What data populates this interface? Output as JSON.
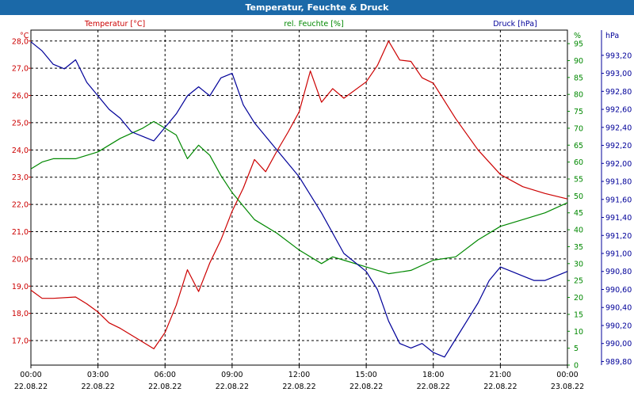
{
  "window": {
    "title": "Temperatur, Feuchte & Druck"
  },
  "chart_data": {
    "type": "line",
    "title": "Temperatur, Feuchte & Druck",
    "colors": {
      "temperature": "#cc0000",
      "humidity": "#008800",
      "pressure": "#000099",
      "grid": "#000000"
    },
    "grid": true,
    "x": {
      "start": "22.08.22 00:00",
      "end": "23.08.22 00:00",
      "ticks": [
        {
          "time": "00:00",
          "date": "22.08.22"
        },
        {
          "time": "03:00",
          "date": "22.08.22"
        },
        {
          "time": "06:00",
          "date": "22.08.22"
        },
        {
          "time": "09:00",
          "date": "22.08.22"
        },
        {
          "time": "12:00",
          "date": "22.08.22"
        },
        {
          "time": "15:00",
          "date": "22.08.22"
        },
        {
          "time": "18:00",
          "date": "22.08.22"
        },
        {
          "time": "21:00",
          "date": "22.08.22"
        },
        {
          "time": "00:00",
          "date": "23.08.22"
        }
      ]
    },
    "axes": {
      "temperature": {
        "label": "Temperatur [°C]",
        "unit": "°C",
        "range": [
          16.1,
          28.4
        ],
        "ticks": [
          "17,0",
          "18,0",
          "19,0",
          "20,0",
          "21,0",
          "22,0",
          "23,0",
          "24,0",
          "25,0",
          "26,0",
          "27,0",
          "28,0"
        ]
      },
      "humidity": {
        "label": "rel. Feuchte [%]",
        "unit": "%",
        "range": [
          0,
          99
        ],
        "ticks": [
          "0",
          "5",
          "10",
          "15",
          "20",
          "25",
          "30",
          "35",
          "40",
          "45",
          "50",
          "55",
          "60",
          "65",
          "70",
          "75",
          "80",
          "85",
          "90",
          "95"
        ]
      },
      "pressure": {
        "label": "Druck [hPa]",
        "unit": "hPa",
        "range": [
          989.76,
          993.48
        ],
        "ticks": [
          "989,80",
          "990,00",
          "990,20",
          "990,40",
          "990,60",
          "990,80",
          "991,00",
          "991,20",
          "991,40",
          "991,60",
          "991,80",
          "992,00",
          "992,20",
          "992,40",
          "992,60",
          "992,80",
          "993,00",
          "993,20"
        ]
      }
    },
    "series": [
      {
        "name": "Temperatur [°C]",
        "key": "temperature",
        "x": [
          0,
          0.5,
          1,
          2,
          2.5,
          3,
          3.5,
          4,
          5,
          5.5,
          6,
          6.5,
          7,
          7.5,
          8,
          8.5,
          9,
          9.5,
          10,
          10.5,
          11,
          11.5,
          12,
          12.5,
          13,
          13.5,
          14,
          15,
          15.5,
          16,
          16.5,
          17,
          17.5,
          18,
          19,
          20,
          21,
          22,
          23,
          24
        ],
        "values": [
          18.85,
          18.55,
          18.55,
          18.6,
          18.35,
          18.05,
          17.65,
          17.45,
          16.95,
          16.7,
          17.3,
          18.3,
          19.6,
          18.8,
          19.85,
          20.7,
          21.75,
          22.6,
          23.65,
          23.2,
          23.95,
          24.65,
          25.4,
          26.9,
          25.75,
          26.25,
          25.9,
          26.5,
          27.1,
          28.0,
          27.3,
          27.25,
          26.65,
          26.45,
          25.15,
          24.0,
          23.1,
          22.65,
          22.4,
          22.2
        ]
      },
      {
        "name": "rel. Feuchte [%]",
        "key": "humidity",
        "x": [
          0,
          0.5,
          1,
          2,
          3,
          4,
          5,
          5.5,
          6,
          6.5,
          7,
          7.5,
          8,
          8.5,
          9,
          9.5,
          10,
          11,
          12,
          13,
          13.5,
          14,
          15,
          16,
          17,
          18,
          19,
          20,
          21,
          22,
          23,
          24
        ],
        "values": [
          58,
          60,
          61,
          61,
          63,
          67,
          70,
          72,
          70,
          68,
          61,
          65,
          62,
          56,
          51,
          47,
          43,
          39,
          34,
          30,
          32,
          31,
          29,
          27,
          28,
          31,
          32,
          37,
          41,
          43,
          45,
          48
        ]
      },
      {
        "name": "Druck [hPa]",
        "key": "pressure",
        "x": [
          0,
          0.5,
          1,
          1.5,
          2,
          2.5,
          3,
          3.5,
          4,
          4.5,
          5,
          5.5,
          6,
          6.5,
          7,
          7.5,
          8,
          8.5,
          9,
          9.5,
          10,
          11,
          12,
          12.5,
          13,
          14,
          15,
          15.5,
          16,
          16.5,
          17,
          17.5,
          18,
          18.5,
          19,
          19.5,
          20,
          20.5,
          21,
          21.5,
          22,
          22.5,
          23,
          23.5,
          24
        ],
        "values": [
          993.35,
          993.25,
          993.1,
          993.05,
          993.15,
          992.9,
          992.75,
          992.6,
          992.5,
          992.35,
          992.3,
          992.25,
          992.4,
          992.55,
          992.75,
          992.85,
          992.75,
          992.95,
          993.0,
          992.65,
          992.45,
          992.15,
          991.85,
          991.65,
          991.45,
          991.0,
          990.8,
          990.6,
          990.25,
          990.0,
          989.95,
          990.0,
          989.9,
          989.85,
          990.05,
          990.25,
          990.45,
          990.7,
          990.85,
          990.8,
          990.75,
          990.7,
          990.7,
          990.75,
          990.8
        ]
      }
    ]
  }
}
